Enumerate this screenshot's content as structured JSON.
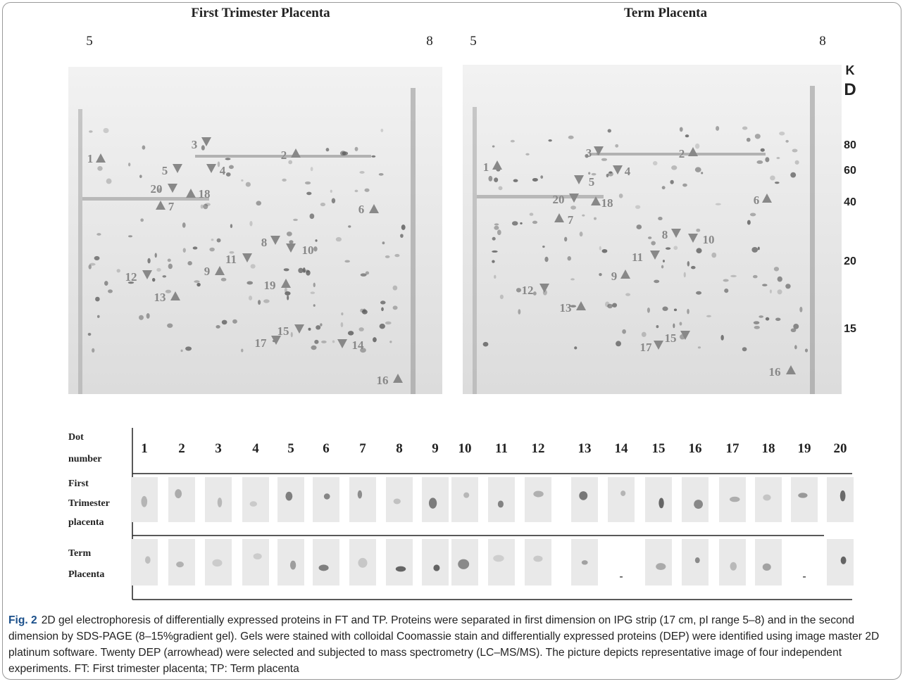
{
  "figure": {
    "gels": [
      {
        "title": "First Trimester Placenta",
        "ph_left": "5",
        "ph_right": "8",
        "spots": [
          "1",
          "2",
          "3",
          "4",
          "5",
          "6",
          "7",
          "8",
          "9",
          "10",
          "11",
          "12",
          "13",
          "14",
          "15",
          "16",
          "17",
          "18",
          "19",
          "20"
        ]
      },
      {
        "title": "Term Placenta",
        "ph_left": "5",
        "ph_right": "8",
        "spots": [
          "1",
          "2",
          "3",
          "4",
          "5",
          "6",
          "7",
          "8",
          "9",
          "10",
          "11",
          "12",
          "13",
          "15",
          "16",
          "17",
          "18",
          "20"
        ]
      }
    ],
    "mw_axis": {
      "unit": [
        "K",
        "D"
      ],
      "labels": [
        "80",
        "60",
        "40",
        "20",
        "15"
      ]
    },
    "table": {
      "header": {
        "label": [
          "Dot",
          "number"
        ],
        "columns": [
          "1",
          "2",
          "3",
          "4",
          "5",
          "6",
          "7",
          "8",
          "9",
          "10",
          "11",
          "12",
          "13",
          "14",
          "15",
          "16",
          "17",
          "18",
          "19",
          "20"
        ]
      },
      "rows": [
        {
          "label": [
            "First",
            "Trimester",
            "placenta"
          ],
          "cells": [
            null,
            null,
            null,
            null,
            null,
            null,
            null,
            null,
            null,
            null,
            null,
            null,
            null,
            null,
            null,
            null,
            null,
            null,
            null,
            null
          ]
        },
        {
          "label": [
            "Term",
            "Placenta"
          ],
          "cells": [
            null,
            null,
            null,
            null,
            null,
            null,
            null,
            null,
            null,
            null,
            null,
            null,
            null,
            "-",
            null,
            null,
            null,
            null,
            "-",
            null
          ]
        }
      ]
    },
    "caption": {
      "label": "Fig. 2",
      "text": "2D gel electrophoresis of differentially expressed proteins in FT and TP. Proteins were separated in first dimension on IPG strip (17 cm, pI range 5–8) and in the second dimension by SDS-PAGE (8–15%gradient gel). Gels were stained with colloidal Coomassie stain and differentially expressed proteins (DEP) were identified using image master 2D platinum software. Twenty DEP (arrowhead) were selected and subjected to mass spectrometry (LC–MS/MS). The picture depicts representative image of four independent experiments. FT: First trimester placenta; TP: Term placenta"
    }
  }
}
